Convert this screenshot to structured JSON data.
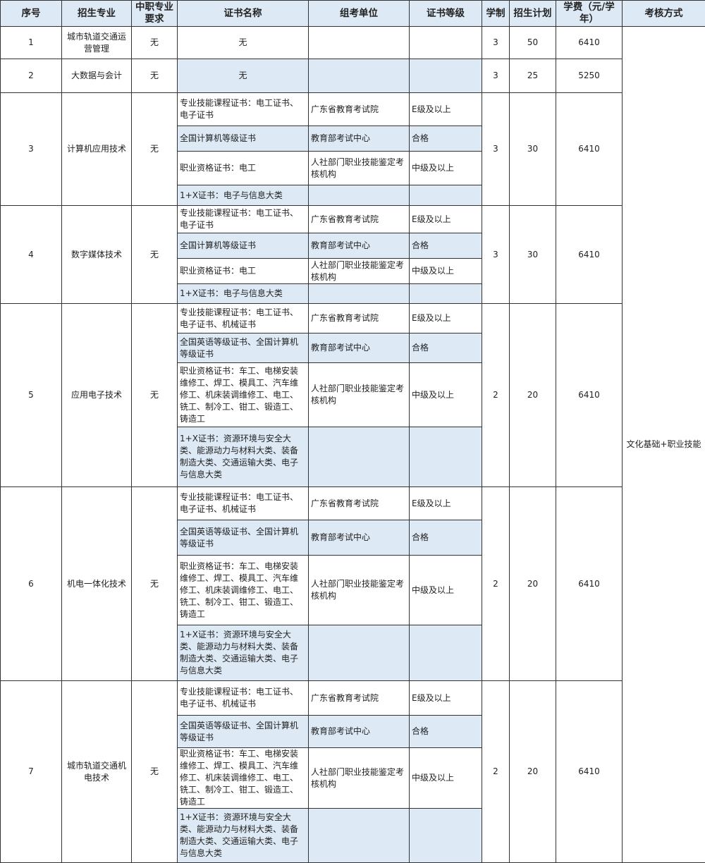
{
  "headers": [
    "序号",
    "招生专业",
    "中职专业要求",
    "证书名称",
    "组考单位",
    "证书等级",
    "学制",
    "招生计划",
    "学费（元/学年）",
    "考核方式"
  ],
  "assessment": "文化基础+职业技能",
  "colors": {
    "header_fill": "#dde9f5",
    "alt_fill": "#dde9f5",
    "border": "#333333"
  },
  "rows": [
    {
      "no": "1",
      "major": "城市轨道交通运营管理",
      "req": "无",
      "years": "3",
      "plan": "50",
      "fee": "6410",
      "certs": [
        {
          "name": "无",
          "org": "",
          "level": "",
          "center": true
        }
      ]
    },
    {
      "no": "2",
      "major": "大数据与会计",
      "req": "无",
      "years": "3",
      "plan": "25",
      "fee": "5250",
      "certs": [
        {
          "name": "无",
          "org": "",
          "level": "",
          "center": true,
          "blue": true
        }
      ]
    },
    {
      "no": "3",
      "major": "计算机应用技术",
      "req": "无",
      "years": "3",
      "plan": "30",
      "fee": "6410",
      "certs": [
        {
          "name": "专业技能课程证书：电工证书、电子证书",
          "org": "广东省教育考试院",
          "level": "E级及以上"
        },
        {
          "name": "全国计算机等级证书",
          "org": "教育部考试中心",
          "level": "合格",
          "blue": true
        },
        {
          "name": "职业资格证书：电工",
          "org": "人社部门职业技能鉴定考核机构",
          "level": "中级及以上"
        },
        {
          "name": "1+X证书：电子与信息大类",
          "org": "",
          "level": "",
          "blue": true
        }
      ]
    },
    {
      "no": "4",
      "major": "数字媒体技术",
      "req": "无",
      "years": "3",
      "plan": "30",
      "fee": "6410",
      "certs": [
        {
          "name": "专业技能课程证书：电工证书、电子证书",
          "org": "广东省教育考试院",
          "level": "E级及以上"
        },
        {
          "name": "全国计算机等级证书",
          "org": "教育部考试中心",
          "level": "合格",
          "blue": true
        },
        {
          "name": "职业资格证书：电工",
          "org": "人社部门职业技能鉴定考核机构",
          "level": "中级及以上"
        },
        {
          "name": "1+X证书：电子与信息大类",
          "org": "",
          "level": "",
          "blue": true
        }
      ]
    },
    {
      "no": "5",
      "major": "应用电子技术",
      "req": "无",
      "years": "2",
      "plan": "20",
      "fee": "6410",
      "certs": [
        {
          "name": "专业技能课程证书：电工证书、电子证书、机械证书",
          "org": "广东省教育考试院",
          "level": "E级及以上"
        },
        {
          "name": "全国英语等级证书、全国计算机等级证书",
          "org": "教育部考试中心",
          "level": "合格",
          "blue": true
        },
        {
          "name": "职业资格证书：车工、电梯安装维修工、焊工、模具工、汽车维修工、机床装调维修工、电工、铣工、制冷工、钳工、锻造工、铸造工",
          "org": "人社部门职业技能鉴定考核机构",
          "level": "中级及以上"
        },
        {
          "name": "1+X证书：资源环境与安全大类、能源动力与材料大类、装备制造大类、交通运输大类、电子与信息大类",
          "org": "",
          "level": "",
          "blue": true
        }
      ]
    },
    {
      "no": "6",
      "major": "机电一体化技术",
      "req": "无",
      "years": "2",
      "plan": "20",
      "fee": "6410",
      "certs": [
        {
          "name": "专业技能课程证书：电工证书、电子证书、机械证书",
          "org": "广东省教育考试院",
          "level": "E级及以上"
        },
        {
          "name": "全国英语等级证书、全国计算机等级证书",
          "org": "教育部考试中心",
          "level": "合格",
          "blue": true
        },
        {
          "name": "职业资格证书：车工、电梯安装维修工、焊工、模具工、汽车维修工、机床装调维修工、电工、铣工、制冷工、钳工、锻造工、铸造工",
          "org": "人社部门职业技能鉴定考核机构",
          "level": "中级及以上"
        },
        {
          "name": "1+X证书：资源环境与安全大类、能源动力与材料大类、装备制造大类、交通运输大类、电子与信息大类",
          "org": "",
          "level": "",
          "blue": true
        }
      ]
    },
    {
      "no": "7",
      "major": "城市轨道交通机电技术",
      "req": "无",
      "years": "2",
      "plan": "20",
      "fee": "6410",
      "certs": [
        {
          "name": "专业技能课程证书：电工证书、电子证书、机械证书",
          "org": "广东省教育考试院",
          "level": "E级及以上"
        },
        {
          "name": "全国英语等级证书、全国计算机等级证书",
          "org": "教育部考试中心",
          "level": "合格",
          "blue": true
        },
        {
          "name": "职业资格证书：车工、电梯安装维修工、焊工、模具工、汽车维修工、机床装调维修工、电工、铣工、制冷工、钳工、锻造工、铸造工",
          "org": "人社部门职业技能鉴定考核机构",
          "level": "中级及以上"
        },
        {
          "name": "1+X证书：资源环境与安全大类、能源动力与材料大类、装备制造大类、交通运输大类、电子与信息大类",
          "org": "",
          "level": "",
          "blue": true
        }
      ]
    }
  ]
}
